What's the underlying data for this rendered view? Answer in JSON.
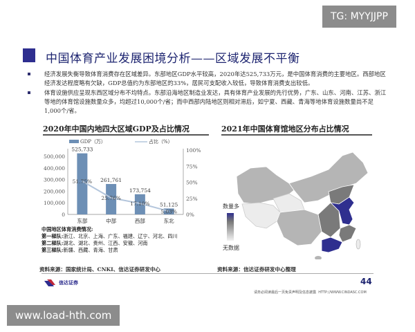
{
  "watermarks": {
    "top_right": "TG: MYYJJPP",
    "bottom_left": "www.load-hth.com"
  },
  "title": "中国体育产业发展困境分析——区域发展不平衡",
  "bullets": [
    "经济发展失衡导致体育消费存在区域差异。东部地区GDP水平较高，2020年达525,733万元，是中国体育消费的主要地区。西部地区经济发达程度略有欠缺，GDP总值约为东部地区的33%，居民可支配收入较低，导致体育消费支出较低。",
    "体育设施供应呈现东西区域分布不均特点。东部沿海地区制造业发达，具有体育产业发展的先行优势，广东、山东、河南、江苏、浙江等地的体育馆设施数量众多，均超过10,000个/省；而中西部内陆地区则相对滞后，如宁夏、西藏、青海等地体育设施数量尚不足1,000个/省。"
  ],
  "chart_data": {
    "type": "bar+line",
    "title": "2020年中国内地四大区域GDP及占比情况",
    "categories": [
      "东部",
      "中部",
      "西部",
      "东北"
    ],
    "series": [
      {
        "name": "GDP（万）",
        "type": "bar",
        "axis": "left",
        "values": [
          525733,
          261761,
          173754,
          51125
        ],
        "labels": [
          "525,733",
          "261,761",
          "173,754",
          "51,125"
        ],
        "color": "#6d8fb5"
      },
      {
        "name": "占比（%）",
        "type": "line",
        "axis": "right",
        "values": [
          51.75,
          25.76,
          17.1,
          5.03
        ],
        "labels": [
          "51.75%",
          "25.76%",
          "17.10%",
          "5.03%"
        ],
        "color": "#b4c6dc"
      }
    ],
    "y_left": {
      "range": [
        0,
        500000
      ],
      "ticks": [
        "0",
        "100,000",
        "200,000",
        "300,000",
        "400,000",
        "500,000"
      ]
    },
    "y_right": {
      "range": [
        0,
        100
      ],
      "ticks": [
        "0%",
        "25%",
        "50%",
        "75%",
        "100%"
      ]
    },
    "legend": "top",
    "grid": false
  },
  "consumption": {
    "heading": "中国地区体育消费情况:",
    "tiers": [
      {
        "label": "第一梯队:",
        "value": "浙江、北京、上海、广东、福建、辽宁、河北、四川"
      },
      {
        "label": "第二梯队:",
        "value": "湖北、湖北、贵州、江西、安徽、河南"
      },
      {
        "label": "第三梯队:",
        "value": "新疆、西藏、青海、甘肃"
      }
    ]
  },
  "left_source": "资料来源：国家统计局、CNKI、信达证券研发中心",
  "map": {
    "title": "2021年中国体育馆地区分布占比情况",
    "legend_high": "数量多",
    "legend_low": "无数据",
    "colors": {
      "high": "#2f2f8f",
      "mid": "#7a7a7a",
      "low": "#b5b5b5",
      "none": "#ececec"
    },
    "source": "资料来源：信达证券研发中心整理"
  },
  "footer": {
    "logo_text": "信达证券",
    "page_number": "44",
    "disclaimer": "请务必阅读最后一页免责声明及信息披露",
    "url": "HTTP://WWW.CINDASC.COM"
  }
}
